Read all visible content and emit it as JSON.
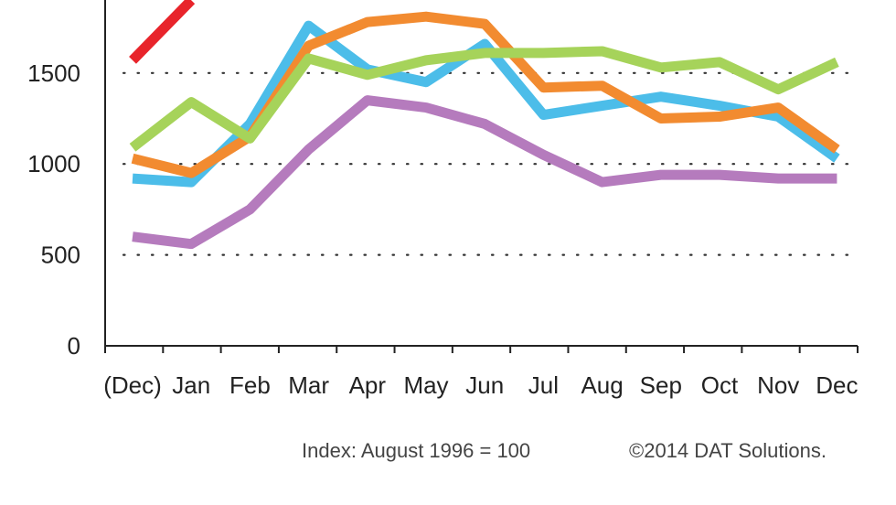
{
  "chart_data": {
    "type": "line",
    "categories": [
      "(Dec)",
      "Jan",
      "Feb",
      "Mar",
      "Apr",
      "May",
      "Jun",
      "Jul",
      "Aug",
      "Sep",
      "Oct",
      "Nov",
      "Dec"
    ],
    "ylim": [
      0,
      1900
    ],
    "yticks": [
      0,
      500,
      1000,
      1500
    ],
    "grid": "horizontal dotted",
    "series": [
      {
        "color": "#e8242b",
        "values": [
          1570,
          1900,
          null,
          null,
          null,
          null,
          null,
          null,
          null,
          null,
          null,
          null,
          null
        ]
      },
      {
        "color": "#4cbde9",
        "values": [
          920,
          900,
          1220,
          1760,
          1520,
          1450,
          1660,
          1270,
          1320,
          1370,
          1320,
          1260,
          1030
        ]
      },
      {
        "color": "#f28b30",
        "values": [
          1030,
          950,
          1150,
          1650,
          1780,
          1810,
          1770,
          1420,
          1430,
          1250,
          1260,
          1310,
          1080
        ]
      },
      {
        "color": "#a6d35a",
        "values": [
          1090,
          1340,
          1140,
          1580,
          1490,
          1570,
          1610,
          1610,
          1620,
          1530,
          1560,
          1410,
          1560
        ]
      },
      {
        "color": "#b57bbd",
        "values": [
          600,
          560,
          750,
          1080,
          1350,
          1310,
          1220,
          1050,
          900,
          940,
          940,
          920,
          920
        ]
      }
    ]
  },
  "footer": {
    "index_note": "Index: August 1996 = 100",
    "copyright": "©2014 DAT Solutions."
  }
}
